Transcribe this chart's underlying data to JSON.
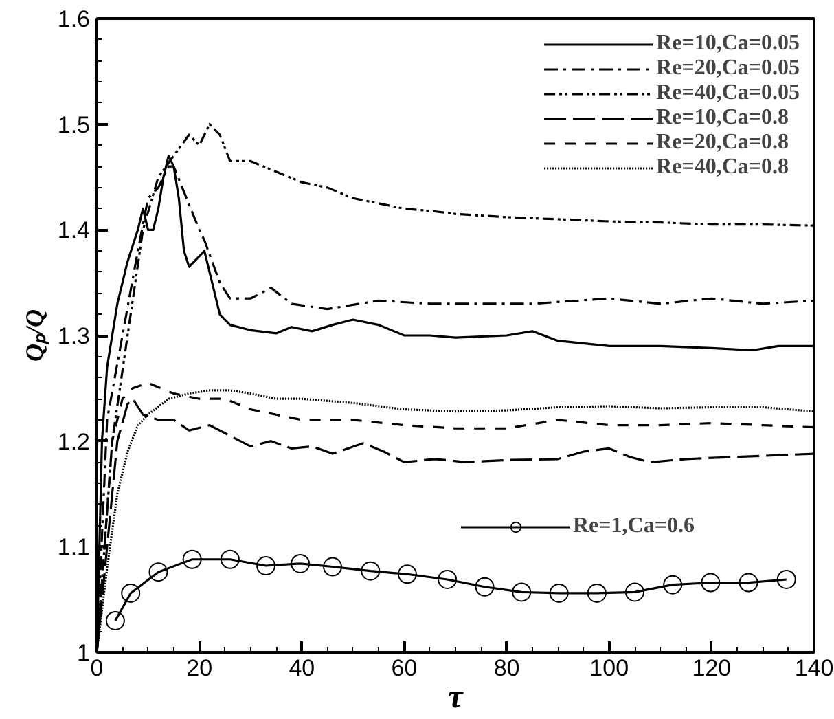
{
  "chart_data": {
    "type": "line",
    "xlabel": "τ",
    "ylabel": "Qₚ/Q",
    "xlim": [
      0,
      140
    ],
    "ylim": [
      1,
      1.6
    ],
    "xticks": [
      0,
      20,
      40,
      60,
      80,
      100,
      120,
      140,
      {
        "value": 5,
        "label": null
      },
      {
        "value": 10,
        "label": null
      },
      {
        "value": 15,
        "label": null
      },
      {
        "value": 25,
        "label": null
      },
      {
        "value": 30,
        "label": null
      },
      {
        "value": 35,
        "label": null
      },
      {
        "value": 45,
        "label": null
      },
      {
        "value": 50,
        "label": null
      },
      {
        "value": 55,
        "label": null
      },
      {
        "value": 65,
        "label": null
      },
      {
        "value": 70,
        "label": null
      },
      {
        "value": 75,
        "label": null
      },
      {
        "value": 85,
        "label": null
      },
      {
        "value": 90,
        "label": null
      },
      {
        "value": 95,
        "label": null
      },
      {
        "value": 105,
        "label": null
      },
      {
        "value": 110,
        "label": null
      },
      {
        "value": 115,
        "label": null
      },
      {
        "value": 125,
        "label": null
      },
      {
        "value": 130,
        "label": null
      },
      {
        "value": 135,
        "label": null
      }
    ],
    "yticks": [
      1,
      1.1,
      1.2,
      1.3,
      1.4,
      1.5,
      1.6,
      {
        "value": 1.02,
        "label": null
      },
      {
        "value": 1.04,
        "label": null
      },
      {
        "value": 1.06,
        "label": null
      },
      {
        "value": 1.08,
        "label": null
      },
      {
        "value": 1.12,
        "label": null
      },
      {
        "value": 1.14,
        "label": null
      },
      {
        "value": 1.16,
        "label": null
      },
      {
        "value": 1.18,
        "label": null
      },
      {
        "value": 1.22,
        "label": null
      },
      {
        "value": 1.24,
        "label": null
      },
      {
        "value": 1.26,
        "label": null
      },
      {
        "value": 1.28,
        "label": null
      },
      {
        "value": 1.32,
        "label": null
      },
      {
        "value": 1.34,
        "label": null
      },
      {
        "value": 1.36,
        "label": null
      },
      {
        "value": 1.38,
        "label": null
      },
      {
        "value": 1.42,
        "label": null
      },
      {
        "value": 1.44,
        "label": null
      },
      {
        "value": 1.46,
        "label": null
      },
      {
        "value": 1.48,
        "label": null
      },
      {
        "value": 1.52,
        "label": null
      },
      {
        "value": 1.54,
        "label": null
      },
      {
        "value": 1.56,
        "label": null
      },
      {
        "value": 1.58,
        "label": null
      }
    ],
    "grid": false,
    "legend": "top right",
    "series": [
      {
        "name": "Re=10,Ca=0.05",
        "color": "#000000",
        "line_style": "solid",
        "marker": "none",
        "x": [
          0,
          1,
          2,
          4,
          6,
          8,
          9,
          10,
          11,
          12,
          13,
          14,
          15,
          16,
          17,
          18,
          19,
          21,
          22,
          24,
          26,
          30,
          35,
          38,
          42,
          46,
          50,
          55,
          60,
          65,
          70,
          80,
          85,
          90,
          100,
          110,
          120,
          128,
          133,
          140
        ],
        "values": [
          1.0,
          1.2,
          1.27,
          1.33,
          1.37,
          1.4,
          1.42,
          1.4,
          1.4,
          1.42,
          1.45,
          1.47,
          1.46,
          1.43,
          1.38,
          1.365,
          1.37,
          1.38,
          1.36,
          1.32,
          1.31,
          1.305,
          1.302,
          1.308,
          1.304,
          1.31,
          1.315,
          1.31,
          1.3,
          1.3,
          1.298,
          1.3,
          1.304,
          1.295,
          1.29,
          1.29,
          1.288,
          1.286,
          1.29,
          1.29
        ]
      },
      {
        "name": "Re=20,Ca=0.05",
        "color": "#000000",
        "line_style": "dashdot",
        "marker": "none",
        "x": [
          0,
          2,
          5,
          8,
          10,
          12,
          14,
          15,
          20,
          21,
          24,
          26,
          30,
          34,
          38,
          45,
          55,
          65,
          75,
          85,
          100,
          110,
          120,
          130,
          140
        ],
        "values": [
          1.0,
          1.22,
          1.3,
          1.38,
          1.43,
          1.44,
          1.46,
          1.46,
          1.4,
          1.39,
          1.35,
          1.335,
          1.335,
          1.345,
          1.33,
          1.325,
          1.333,
          1.33,
          1.33,
          1.33,
          1.335,
          1.33,
          1.335,
          1.33,
          1.333
        ]
      },
      {
        "name": "Re=40,Ca=0.05",
        "color": "#000000",
        "line_style": "dashdotdot",
        "marker": "none",
        "x": [
          0,
          3,
          6,
          9,
          12,
          15,
          18,
          20,
          22,
          24,
          26,
          30,
          35,
          40,
          45,
          50,
          55,
          60,
          65,
          70,
          80,
          90,
          100,
          110,
          120,
          130,
          140
        ],
        "values": [
          1.0,
          1.2,
          1.3,
          1.4,
          1.45,
          1.47,
          1.49,
          1.48,
          1.5,
          1.49,
          1.465,
          1.465,
          1.455,
          1.445,
          1.44,
          1.43,
          1.425,
          1.42,
          1.418,
          1.415,
          1.412,
          1.41,
          1.408,
          1.407,
          1.405,
          1.405,
          1.404
        ]
      },
      {
        "name": "Re=10,Ca=0.8",
        "color": "#000000",
        "line_style": "longdash",
        "marker": "none",
        "x": [
          0,
          2,
          4,
          6,
          7,
          9,
          12,
          15,
          18,
          22,
          26,
          30,
          34,
          38,
          42,
          46,
          52,
          56,
          60,
          66,
          72,
          80,
          90,
          95,
          100,
          104,
          108,
          115,
          125,
          140
        ],
        "values": [
          1.0,
          1.1,
          1.2,
          1.235,
          1.24,
          1.225,
          1.22,
          1.22,
          1.21,
          1.215,
          1.205,
          1.195,
          1.2,
          1.193,
          1.195,
          1.188,
          1.198,
          1.19,
          1.18,
          1.183,
          1.18,
          1.182,
          1.183,
          1.19,
          1.193,
          1.185,
          1.18,
          1.183,
          1.185,
          1.188
        ]
      },
      {
        "name": "Re=20,Ca=0.8",
        "color": "#000000",
        "line_style": "dashed",
        "marker": "none",
        "x": [
          0,
          3,
          5,
          7,
          10,
          15,
          20,
          25,
          30,
          35,
          40,
          50,
          60,
          70,
          80,
          90,
          100,
          110,
          120,
          130,
          140
        ],
        "values": [
          1.0,
          1.2,
          1.24,
          1.25,
          1.255,
          1.245,
          1.24,
          1.24,
          1.23,
          1.225,
          1.22,
          1.22,
          1.215,
          1.212,
          1.212,
          1.22,
          1.215,
          1.215,
          1.217,
          1.215,
          1.213
        ]
      },
      {
        "name": "Re=40,Ca=0.8",
        "color": "#000000",
        "line_style": "dotted",
        "marker": "none",
        "x": [
          0,
          2,
          4,
          6,
          8,
          10,
          14,
          18,
          22,
          26,
          30,
          35,
          40,
          50,
          60,
          70,
          80,
          90,
          100,
          110,
          120,
          130,
          140
        ],
        "values": [
          1.0,
          1.08,
          1.15,
          1.19,
          1.215,
          1.225,
          1.24,
          1.245,
          1.248,
          1.248,
          1.245,
          1.24,
          1.24,
          1.236,
          1.23,
          1.228,
          1.229,
          1.232,
          1.233,
          1.231,
          1.232,
          1.232,
          1.228
        ]
      },
      {
        "name": "Re=1,Ca=0.6",
        "color": "#000000",
        "line_style": "solid",
        "marker": "circle",
        "x": [
          3.6,
          6.6,
          12,
          18.6,
          26,
          33,
          39.7,
          46,
          53.4,
          60.6,
          68.4,
          75.7,
          82.9,
          90.2,
          97.6,
          105,
          112.4,
          119.8,
          127.2,
          134.6
        ],
        "values": [
          1.03,
          1.056,
          1.076,
          1.088,
          1.088,
          1.082,
          1.084,
          1.081,
          1.077,
          1.074,
          1.069,
          1.062,
          1.057,
          1.056,
          1.056,
          1.057,
          1.064,
          1.066,
          1.066,
          1.069
        ]
      }
    ]
  }
}
